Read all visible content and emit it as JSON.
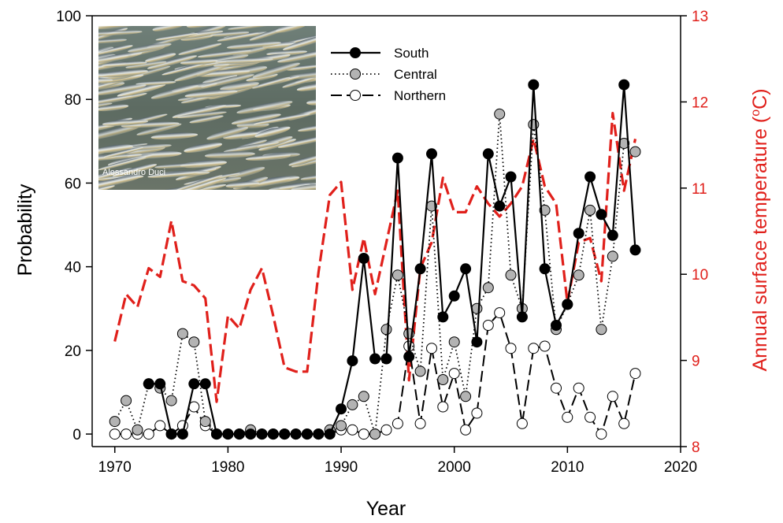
{
  "chart_data": {
    "type": "line",
    "title": "",
    "xlabel": "Year",
    "ylabel": "Probability",
    "y2label": "Annual surface temperature (°C)",
    "y2label_parts": {
      "main": "Annual surface temperature (",
      "sup": "o",
      "unit": "C)"
    },
    "xlim": [
      1968,
      2020
    ],
    "ylim": [
      -3,
      100
    ],
    "y2lim": [
      8,
      13
    ],
    "xticks": [
      "1970",
      "1980",
      "1990",
      "2000",
      "2010",
      "2020"
    ],
    "yticks": [
      "0",
      "20",
      "40",
      "60",
      "80",
      "100"
    ],
    "y2ticks": [
      "8",
      "9",
      "10",
      "11",
      "12",
      "13"
    ],
    "legend_position": "top-center",
    "photo_credit": "Alessandro Duci",
    "colors": {
      "temperature": "#e0201b",
      "central_fill": "#b3b3b3",
      "south": "#000000"
    },
    "series": [
      {
        "name": "South",
        "style": "solid-filled-black",
        "x": [
          1973,
          1974,
          1975,
          1976,
          1977,
          1978,
          1979,
          1980,
          1981,
          1982,
          1983,
          1984,
          1985,
          1986,
          1987,
          1988,
          1989,
          1990,
          1991,
          1992,
          1993,
          1994,
          1995,
          1996,
          1997,
          1998,
          1999,
          2000,
          2001,
          2002,
          2003,
          2004,
          2005,
          2006,
          2007,
          2008,
          2009,
          2010,
          2011,
          2012,
          2013,
          2014,
          2015,
          2016
        ],
        "values": [
          12,
          12,
          0,
          0,
          12,
          12,
          0,
          0,
          0,
          0,
          0,
          0,
          0,
          0,
          0,
          0,
          0,
          6,
          17.5,
          42,
          18,
          18,
          66,
          18.5,
          39.5,
          67,
          28,
          33,
          39.5,
          22,
          67,
          54.5,
          61.5,
          28,
          83.5,
          39.5,
          26,
          31,
          48,
          61.5,
          52.5,
          47.5,
          83.5,
          44
        ]
      },
      {
        "name": "Central",
        "style": "dotted-filled-gray",
        "x": [
          1970,
          1971,
          1972,
          1973,
          1974,
          1975,
          1976,
          1977,
          1978,
          1979,
          1980,
          1981,
          1982,
          1983,
          1984,
          1985,
          1986,
          1987,
          1988,
          1989,
          1990,
          1991,
          1992,
          1993,
          1994,
          1995,
          1996,
          1997,
          1998,
          1999,
          2000,
          2001,
          2002,
          2003,
          2004,
          2005,
          2006,
          2007,
          2008,
          2009,
          2010,
          2011,
          2012,
          2013,
          2014,
          2015,
          2016
        ],
        "values": [
          3,
          8,
          1,
          12,
          11,
          8,
          24,
          22,
          3,
          0,
          0,
          0,
          1,
          0,
          0,
          0,
          0,
          0,
          0,
          1,
          2,
          7,
          9,
          0,
          25,
          38,
          24,
          15,
          54.5,
          13,
          22,
          9,
          30,
          35,
          76.5,
          38,
          30,
          74,
          53.5,
          25,
          31,
          38,
          53.5,
          25,
          42.5,
          69.5,
          67.5
        ]
      },
      {
        "name": "Northern",
        "style": "dashed-open",
        "x": [
          1970,
          1971,
          1972,
          1973,
          1974,
          1975,
          1976,
          1977,
          1978,
          1979,
          1980,
          1981,
          1982,
          1983,
          1984,
          1985,
          1986,
          1987,
          1988,
          1989,
          1990,
          1991,
          1992,
          1993,
          1994,
          1995,
          1996,
          1997,
          1998,
          1999,
          2000,
          2001,
          2002,
          2003,
          2004,
          2005,
          2006,
          2007,
          2008,
          2009,
          2010,
          2011,
          2012,
          2013,
          2014,
          2015,
          2016
        ],
        "values": [
          0,
          0,
          0,
          0,
          2,
          0,
          2,
          6.5,
          2,
          0,
          0,
          0,
          0,
          0,
          0,
          0,
          0,
          0,
          0,
          0,
          1,
          1,
          0,
          0,
          1,
          2.5,
          21,
          2.5,
          20.5,
          6.5,
          14.5,
          1,
          5,
          26,
          29,
          20.5,
          2.5,
          20.5,
          21,
          11,
          4,
          11,
          4,
          0,
          9,
          2.5,
          14.5
        ]
      },
      {
        "name": "Annual surface temperature",
        "axis": "right",
        "style": "dashed-red",
        "x": [
          1970,
          1971,
          1972,
          1973,
          1974,
          1975,
          1976,
          1977,
          1978,
          1979,
          1980,
          1981,
          1982,
          1983,
          1984,
          1985,
          1986,
          1987,
          1988,
          1989,
          1990,
          1991,
          1992,
          1993,
          1994,
          1995,
          1996,
          1997,
          1998,
          1999,
          2000,
          2001,
          2002,
          2003,
          2004,
          2005,
          2006,
          2007,
          2008,
          2009,
          2010,
          2011,
          2012,
          2013,
          2014,
          2015,
          2016
        ],
        "values": [
          9.22,
          9.77,
          9.62,
          10.07,
          9.97,
          10.62,
          9.92,
          9.87,
          9.72,
          8.52,
          9.52,
          9.37,
          9.82,
          10.07,
          9.52,
          8.92,
          8.87,
          8.87,
          10.02,
          10.92,
          11.07,
          9.82,
          10.42,
          9.77,
          10.37,
          10.97,
          8.77,
          10.07,
          10.37,
          11.12,
          10.72,
          10.72,
          11.02,
          10.82,
          10.67,
          10.82,
          11.02,
          11.57,
          11.02,
          10.82,
          9.67,
          10.37,
          10.42,
          9.92,
          11.87,
          10.97,
          11.57
        ]
      }
    ]
  }
}
